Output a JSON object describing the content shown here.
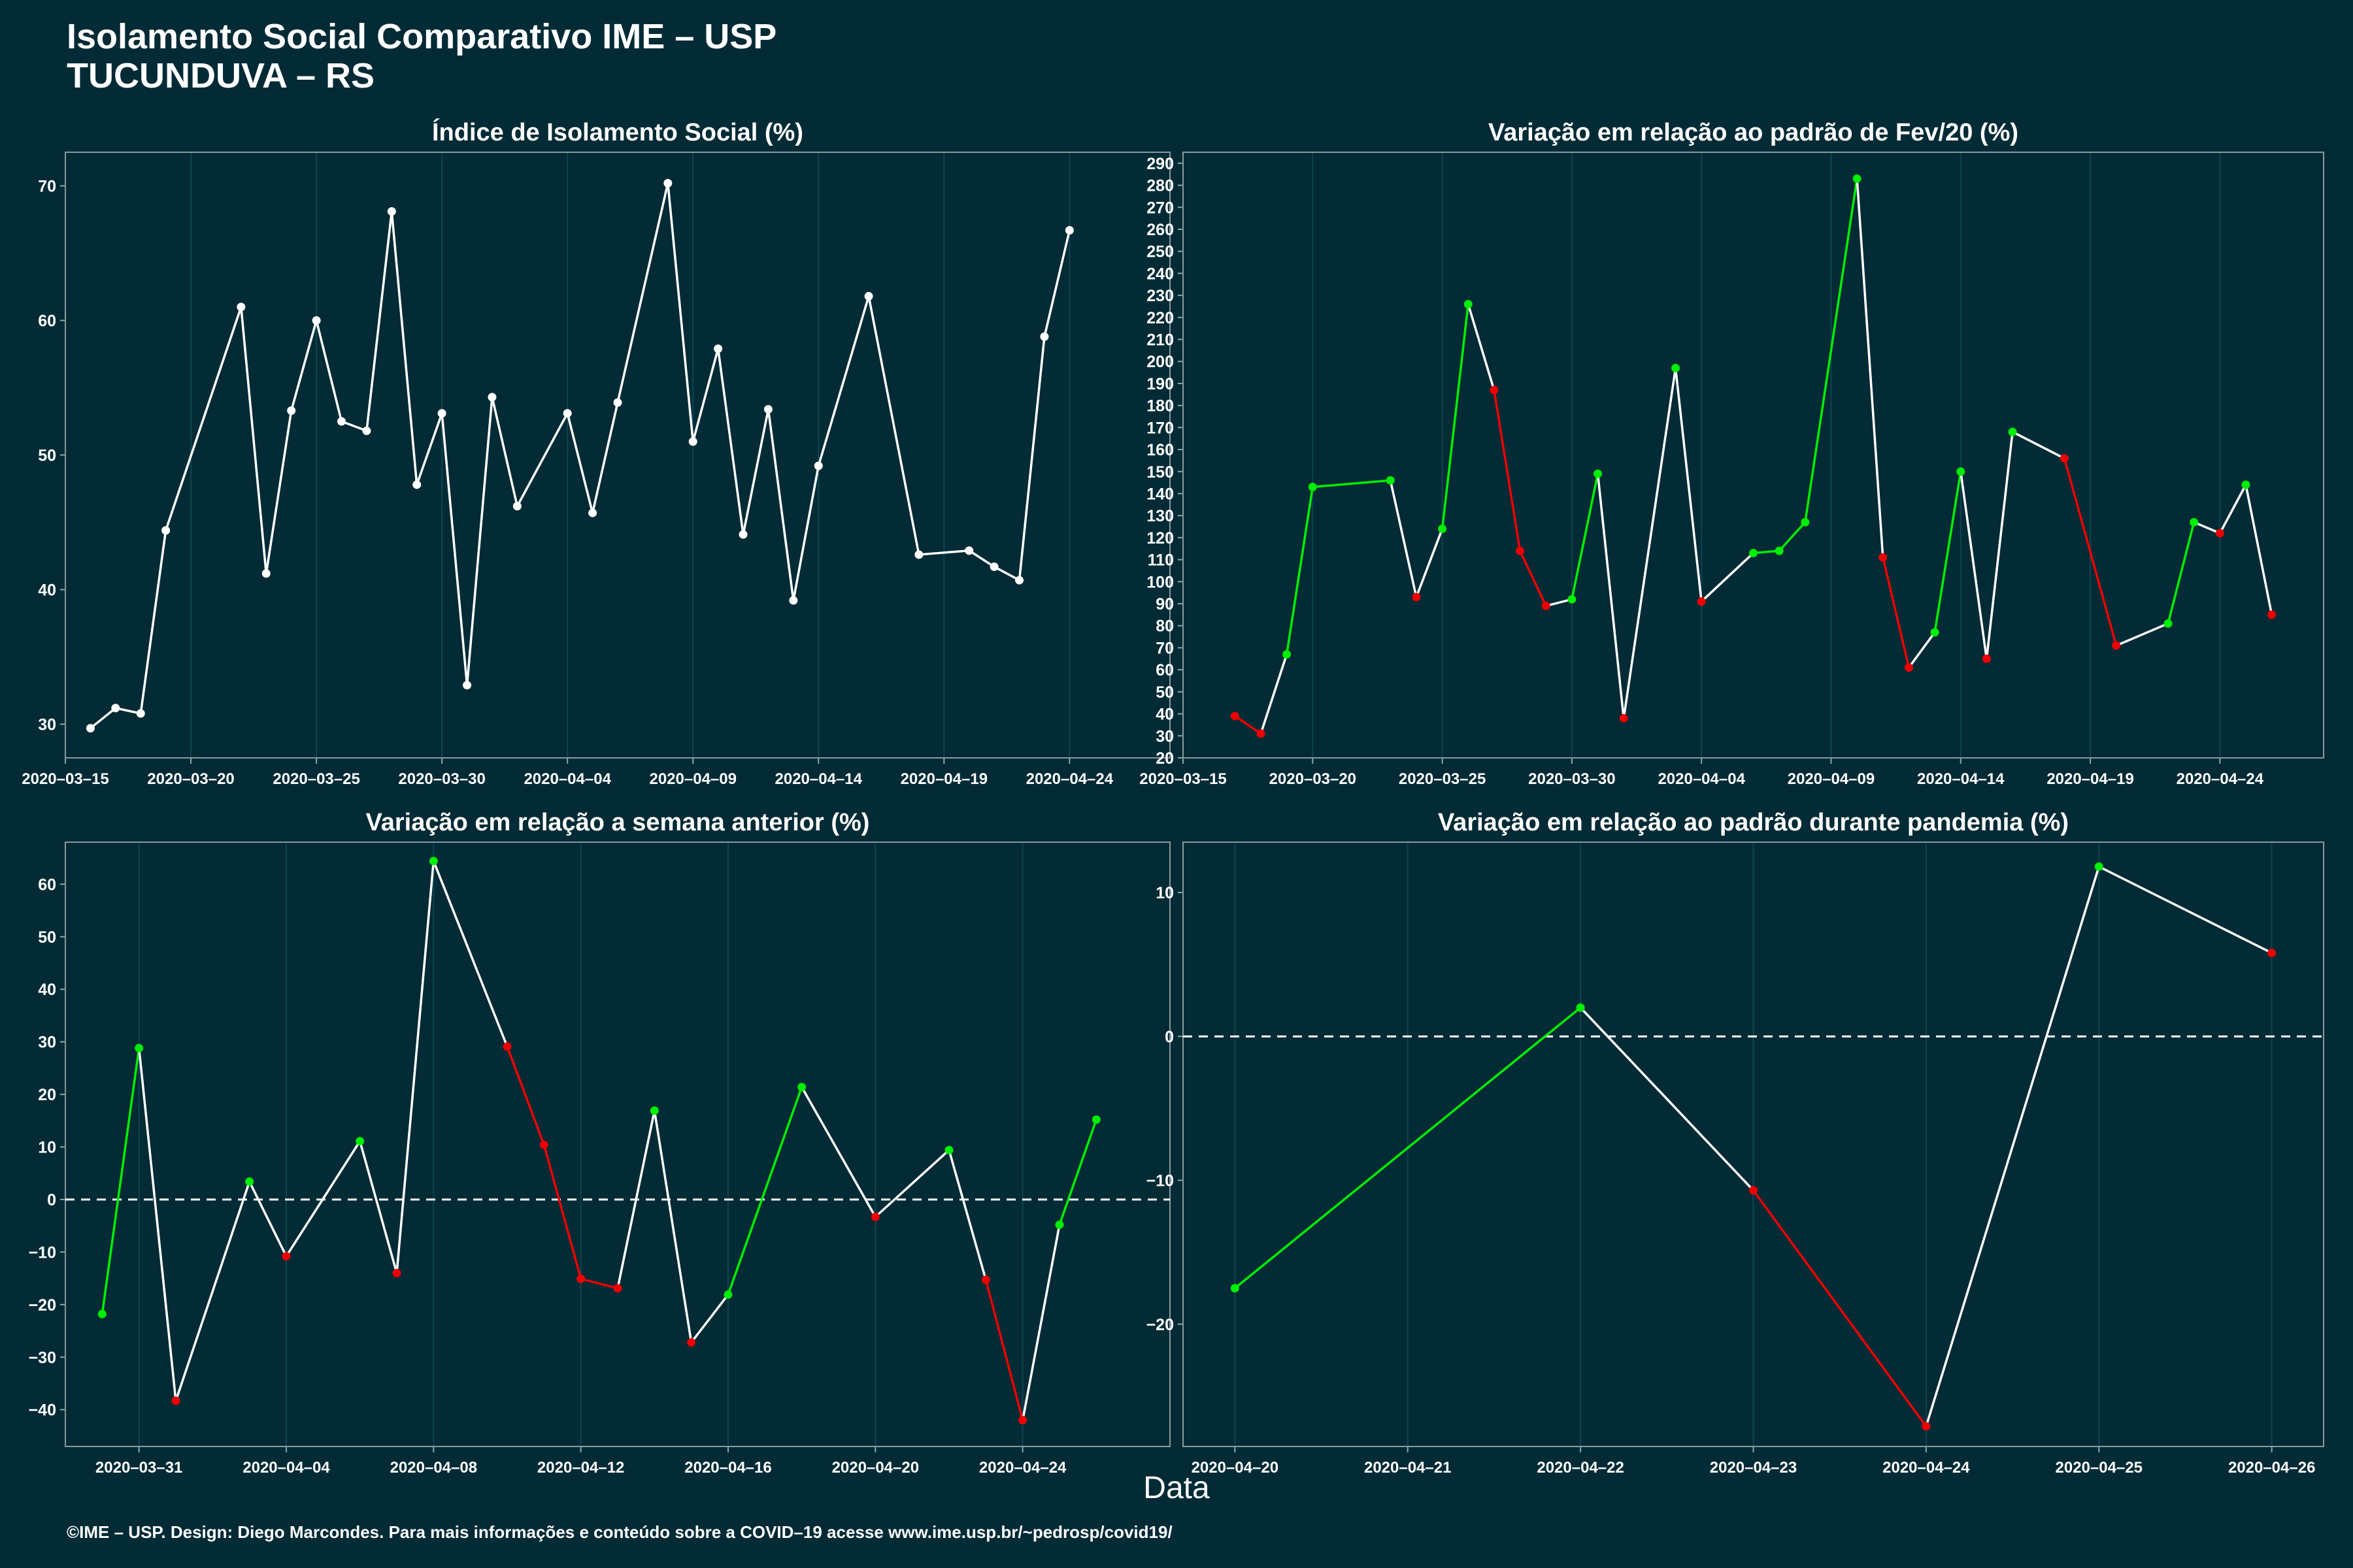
{
  "header": {
    "title_line1": "Isolamento Social Comparativo IME – USP",
    "title_line2": "TUCUNDUVA – RS"
  },
  "x_axis_label": "Data",
  "footer": "©IME – USP. Design: Diego Marcondes. Para mais informações e conteúdo sobre a COVID–19 acesse www.ime.usp.br/~pedrosp/covid19/",
  "colors": {
    "background": "#022b36",
    "neutral": "#ffffff",
    "increase": "#00ee00",
    "decrease": "#ee0000",
    "grid": "#0f4450"
  },
  "chart_data": [
    {
      "type": "line",
      "title": "Índice de Isolamento Social (%)",
      "xlim": [
        "2020-03-15",
        "2020-04-28"
      ],
      "ylim": [
        27.5,
        72.5
      ],
      "x_ticks": [
        "2020-03-15",
        "2020-03-20",
        "2020-03-25",
        "2020-03-30",
        "2020-04-04",
        "2020-04-09",
        "2020-04-14",
        "2020-04-19",
        "2020-04-24"
      ],
      "y_ticks": [
        30,
        40,
        50,
        60,
        70
      ],
      "points": [
        {
          "x": "2020-03-16",
          "y": 29.7
        },
        {
          "x": "2020-03-17",
          "y": 31.2
        },
        {
          "x": "2020-03-18",
          "y": 30.8
        },
        {
          "x": "2020-03-19",
          "y": 44.4
        },
        {
          "x": "2020-03-22",
          "y": 61.0
        },
        {
          "x": "2020-03-23",
          "y": 41.2
        },
        {
          "x": "2020-03-24",
          "y": 53.3
        },
        {
          "x": "2020-03-25",
          "y": 60.0
        },
        {
          "x": "2020-03-26",
          "y": 52.5
        },
        {
          "x": "2020-03-27",
          "y": 51.8
        },
        {
          "x": "2020-03-28",
          "y": 68.1
        },
        {
          "x": "2020-03-29",
          "y": 47.8
        },
        {
          "x": "2020-03-30",
          "y": 53.1
        },
        {
          "x": "2020-03-31",
          "y": 32.9
        },
        {
          "x": "2020-04-01",
          "y": 54.3
        },
        {
          "x": "2020-04-02",
          "y": 46.2
        },
        {
          "x": "2020-04-04",
          "y": 53.1
        },
        {
          "x": "2020-04-05",
          "y": 45.7
        },
        {
          "x": "2020-04-06",
          "y": 53.9
        },
        {
          "x": "2020-04-08",
          "y": 70.2
        },
        {
          "x": "2020-04-09",
          "y": 51.0
        },
        {
          "x": "2020-04-10",
          "y": 57.9
        },
        {
          "x": "2020-04-11",
          "y": 44.1
        },
        {
          "x": "2020-04-12",
          "y": 53.4
        },
        {
          "x": "2020-04-13",
          "y": 39.2
        },
        {
          "x": "2020-04-14",
          "y": 49.2
        },
        {
          "x": "2020-04-16",
          "y": 61.8
        },
        {
          "x": "2020-04-18",
          "y": 42.6
        },
        {
          "x": "2020-04-20",
          "y": 42.9
        },
        {
          "x": "2020-04-21",
          "y": 41.7
        },
        {
          "x": "2020-04-22",
          "y": 40.7
        },
        {
          "x": "2020-04-23",
          "y": 58.8
        },
        {
          "x": "2020-04-24",
          "y": 66.7
        }
      ]
    },
    {
      "type": "line",
      "title": "Variação em relação ao padrão de Fev/20 (%)",
      "xlim": [
        "2020-03-15",
        "2020-04-28"
      ],
      "ylim": [
        20,
        295
      ],
      "x_ticks": [
        "2020-03-15",
        "2020-03-20",
        "2020-03-25",
        "2020-03-30",
        "2020-04-04",
        "2020-04-09",
        "2020-04-14",
        "2020-04-19",
        "2020-04-24"
      ],
      "y_ticks": [
        20,
        30,
        40,
        50,
        60,
        70,
        80,
        90,
        100,
        110,
        120,
        130,
        140,
        150,
        160,
        170,
        180,
        190,
        200,
        210,
        220,
        230,
        240,
        250,
        260,
        270,
        280,
        290
      ],
      "points": [
        {
          "x": "2020-03-17",
          "y": 39
        },
        {
          "x": "2020-03-18",
          "y": 31
        },
        {
          "x": "2020-03-19",
          "y": 67
        },
        {
          "x": "2020-03-20",
          "y": 143
        },
        {
          "x": "2020-03-23",
          "y": 146
        },
        {
          "x": "2020-03-24",
          "y": 93
        },
        {
          "x": "2020-03-25",
          "y": 124
        },
        {
          "x": "2020-03-26",
          "y": 226
        },
        {
          "x": "2020-03-27",
          "y": 187
        },
        {
          "x": "2020-03-28",
          "y": 114
        },
        {
          "x": "2020-03-29",
          "y": 89
        },
        {
          "x": "2020-03-30",
          "y": 92
        },
        {
          "x": "2020-03-31",
          "y": 149
        },
        {
          "x": "2020-04-01",
          "y": 38
        },
        {
          "x": "2020-04-03",
          "y": 197
        },
        {
          "x": "2020-04-04",
          "y": 91
        },
        {
          "x": "2020-04-06",
          "y": 113
        },
        {
          "x": "2020-04-07",
          "y": 114
        },
        {
          "x": "2020-04-08",
          "y": 127
        },
        {
          "x": "2020-04-10",
          "y": 283
        },
        {
          "x": "2020-04-11",
          "y": 111
        },
        {
          "x": "2020-04-12",
          "y": 61
        },
        {
          "x": "2020-04-13",
          "y": 77
        },
        {
          "x": "2020-04-14",
          "y": 150
        },
        {
          "x": "2020-04-15",
          "y": 65
        },
        {
          "x": "2020-04-16",
          "y": 168
        },
        {
          "x": "2020-04-18",
          "y": 156
        },
        {
          "x": "2020-04-20",
          "y": 71
        },
        {
          "x": "2020-04-22",
          "y": 81
        },
        {
          "x": "2020-04-23",
          "y": 127
        },
        {
          "x": "2020-04-24",
          "y": 122
        },
        {
          "x": "2020-04-25",
          "y": 144
        },
        {
          "x": "2020-04-26",
          "y": 85
        }
      ]
    },
    {
      "type": "line",
      "title": "Variação em relação a semana anterior (%)",
      "xlim": [
        "2020-03-29",
        "2020-04-28"
      ],
      "ylim": [
        -47,
        68
      ],
      "x_ticks": [
        "2020-03-31",
        "2020-04-04",
        "2020-04-08",
        "2020-04-12",
        "2020-04-16",
        "2020-04-20",
        "2020-04-24"
      ],
      "y_ticks": [
        -40,
        -30,
        -20,
        -10,
        0,
        10,
        20,
        30,
        40,
        50,
        60
      ],
      "reference_line": 0,
      "points": [
        {
          "x": "2020-03-30",
          "y": -21.8
        },
        {
          "x": "2020-03-31",
          "y": 28.8
        },
        {
          "x": "2020-04-01",
          "y": -38.3
        },
        {
          "x": "2020-04-03",
          "y": 3.4
        },
        {
          "x": "2020-04-04",
          "y": -10.8
        },
        {
          "x": "2020-04-06",
          "y": 11.1
        },
        {
          "x": "2020-04-07",
          "y": -14.0
        },
        {
          "x": "2020-04-08",
          "y": 64.4
        },
        {
          "x": "2020-04-10",
          "y": 29.1
        },
        {
          "x": "2020-04-11",
          "y": 10.4
        },
        {
          "x": "2020-04-12",
          "y": -15.1
        },
        {
          "x": "2020-04-13",
          "y": -16.9
        },
        {
          "x": "2020-04-14",
          "y": 16.9
        },
        {
          "x": "2020-04-15",
          "y": -27.2
        },
        {
          "x": "2020-04-16",
          "y": -18.1
        },
        {
          "x": "2020-04-18",
          "y": 21.4
        },
        {
          "x": "2020-04-20",
          "y": -3.3
        },
        {
          "x": "2020-04-22",
          "y": 9.4
        },
        {
          "x": "2020-04-23",
          "y": -15.3
        },
        {
          "x": "2020-04-24",
          "y": -42.0
        },
        {
          "x": "2020-04-25",
          "y": -4.8
        },
        {
          "x": "2020-04-26",
          "y": 15.2
        }
      ]
    },
    {
      "type": "line",
      "title": "Variação em relação ao padrão durante pandemia (%)",
      "xlim": [
        "2020-04-19.7",
        "2020-04-26.3"
      ],
      "ylim": [
        -28.5,
        13.5
      ],
      "x_ticks": [
        "2020-04-20",
        "2020-04-21",
        "2020-04-22",
        "2020-04-23",
        "2020-04-24",
        "2020-04-25",
        "2020-04-26"
      ],
      "y_ticks": [
        -20,
        -10,
        0,
        10
      ],
      "reference_line": 0,
      "points": [
        {
          "x": "2020-04-20",
          "y": -17.5
        },
        {
          "x": "2020-04-22",
          "y": 2.0
        },
        {
          "x": "2020-04-23",
          "y": -10.7
        },
        {
          "x": "2020-04-24",
          "y": -27.1
        },
        {
          "x": "2020-04-25",
          "y": 11.8
        },
        {
          "x": "2020-04-26",
          "y": 5.8
        }
      ]
    }
  ]
}
